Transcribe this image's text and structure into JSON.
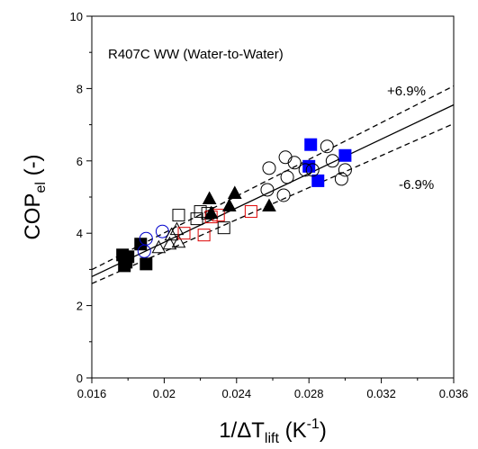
{
  "chart_data": {
    "type": "scatter",
    "title": "",
    "xlabel": {
      "main": "1/ΔT",
      "sub": "lift",
      "unit_open": " (K",
      "unit_sup": "-1",
      "unit_close": ")"
    },
    "ylabel": {
      "main": "COP",
      "sub": "el",
      "unit": " (-)"
    },
    "xlim": [
      0.016,
      0.036
    ],
    "ylim": [
      0,
      10
    ],
    "xticks": [
      0.016,
      0.02,
      0.024,
      0.028,
      0.032,
      0.036
    ],
    "xtick_labels": [
      "0.016",
      "0.02",
      "0.024",
      "0.028",
      "0.032",
      "0.036"
    ],
    "yticks": [
      0,
      2,
      4,
      6,
      8,
      10
    ],
    "ytick_labels": [
      "0",
      "2",
      "4",
      "6",
      "8",
      "10"
    ],
    "annotations": {
      "label": "R407C WW (Water-to-Water)",
      "upper_band": "+6.9%",
      "lower_band": "-6.9%"
    },
    "fit_line": {
      "slope": 237.5,
      "intercept": -1.0,
      "style": "solid"
    },
    "band_upper": {
      "factor": 1.069,
      "style": "dashed"
    },
    "band_lower": {
      "factor": 0.931,
      "style": "dashed"
    },
    "series": [
      {
        "marker": "square-filled",
        "color": "#000000",
        "points": [
          [
            0.0177,
            3.4
          ],
          [
            0.0178,
            3.1
          ],
          [
            0.0179,
            3.2
          ],
          [
            0.018,
            3.35
          ],
          [
            0.0187,
            3.7
          ],
          [
            0.019,
            3.15
          ]
        ]
      },
      {
        "marker": "square-filled",
        "color": "#0000ff",
        "points": [
          [
            0.0281,
            6.45
          ],
          [
            0.028,
            5.85
          ],
          [
            0.0285,
            5.45
          ],
          [
            0.03,
            6.15
          ]
        ]
      },
      {
        "marker": "circle-open",
        "color": "#0000cc",
        "points": [
          [
            0.0189,
            3.5
          ],
          [
            0.019,
            3.85
          ],
          [
            0.0199,
            4.05
          ]
        ]
      },
      {
        "marker": "triangle-open",
        "color": "#000000",
        "points": [
          [
            0.0197,
            3.6
          ],
          [
            0.0203,
            3.7
          ],
          [
            0.0204,
            3.95
          ],
          [
            0.0207,
            4.1
          ],
          [
            0.0208,
            3.75
          ]
        ]
      },
      {
        "marker": "square-open",
        "color": "#000000",
        "points": [
          [
            0.0208,
            4.5
          ],
          [
            0.0218,
            4.4
          ],
          [
            0.022,
            4.6
          ],
          [
            0.0224,
            4.55
          ],
          [
            0.0233,
            4.15
          ]
        ]
      },
      {
        "marker": "square-open",
        "color": "#dd0000",
        "points": [
          [
            0.0211,
            4.0
          ],
          [
            0.0222,
            3.95
          ],
          [
            0.0226,
            4.45
          ],
          [
            0.023,
            4.5
          ],
          [
            0.0248,
            4.6
          ]
        ]
      },
      {
        "marker": "triangle-filled",
        "color": "#000000",
        "points": [
          [
            0.0225,
            4.95
          ],
          [
            0.0226,
            4.55
          ],
          [
            0.0236,
            4.75
          ],
          [
            0.0239,
            5.1
          ],
          [
            0.0258,
            4.75
          ]
        ]
      },
      {
        "marker": "circle-open",
        "color": "#000000",
        "points": [
          [
            0.0258,
            5.8
          ],
          [
            0.0257,
            5.2
          ],
          [
            0.0266,
            5.05
          ],
          [
            0.0267,
            6.1
          ],
          [
            0.0268,
            5.55
          ],
          [
            0.0272,
            5.95
          ],
          [
            0.0278,
            5.75
          ],
          [
            0.0282,
            5.75
          ],
          [
            0.029,
            6.4
          ],
          [
            0.0293,
            6.0
          ],
          [
            0.0298,
            5.5
          ],
          [
            0.03,
            5.75
          ]
        ]
      }
    ]
  }
}
